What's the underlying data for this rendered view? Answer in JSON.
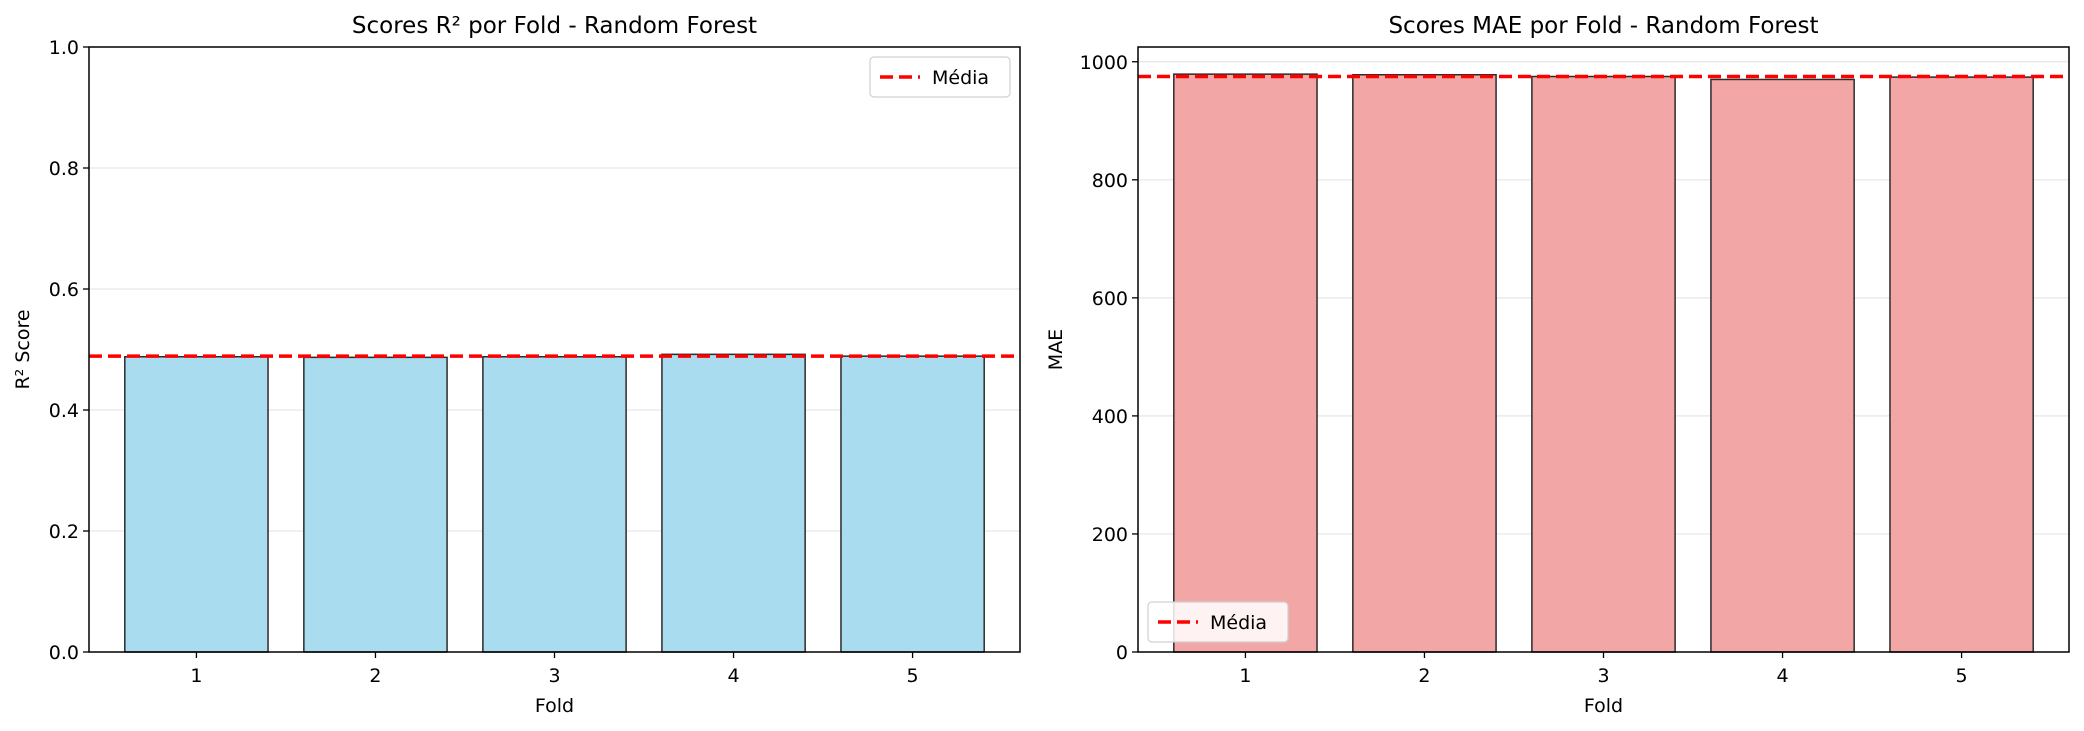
{
  "chart_data": [
    {
      "type": "bar",
      "title": "Scores R² por Fold - Random Forest",
      "xlabel": "Fold",
      "ylabel": "R² Score",
      "categories": [
        "1",
        "2",
        "3",
        "4",
        "5"
      ],
      "values": [
        0.488,
        0.487,
        0.488,
        0.492,
        0.489
      ],
      "mean": 0.489,
      "ylim": [
        0,
        1.0
      ],
      "yticks": [
        0.0,
        0.2,
        0.4,
        0.6,
        0.8,
        1.0
      ],
      "ytick_labels": [
        "0.0",
        "0.2",
        "0.4",
        "0.6",
        "0.8",
        "1.0"
      ],
      "bar_color": "#a9dcee",
      "edge_color": "#2b2b2b",
      "mean_line_color": "#ff0000",
      "legend": {
        "label": "Média",
        "placement": "upper-right"
      },
      "grid": "y"
    },
    {
      "type": "bar",
      "title": "Scores MAE por Fold - Random Forest",
      "xlabel": "Fold",
      "ylabel": "MAE",
      "categories": [
        "1",
        "2",
        "3",
        "4",
        "5"
      ],
      "values": [
        979,
        978,
        975,
        970,
        974
      ],
      "mean": 975,
      "ylim": [
        0,
        1025
      ],
      "yticks": [
        0,
        200,
        400,
        600,
        800,
        1000
      ],
      "ytick_labels": [
        "0",
        "200",
        "400",
        "600",
        "800",
        "1000"
      ],
      "bar_color": "#f3a6a6",
      "edge_color": "#2b2b2b",
      "mean_line_color": "#ff0000",
      "legend": {
        "label": "Média",
        "placement": "lower-left"
      },
      "grid": "y"
    }
  ]
}
